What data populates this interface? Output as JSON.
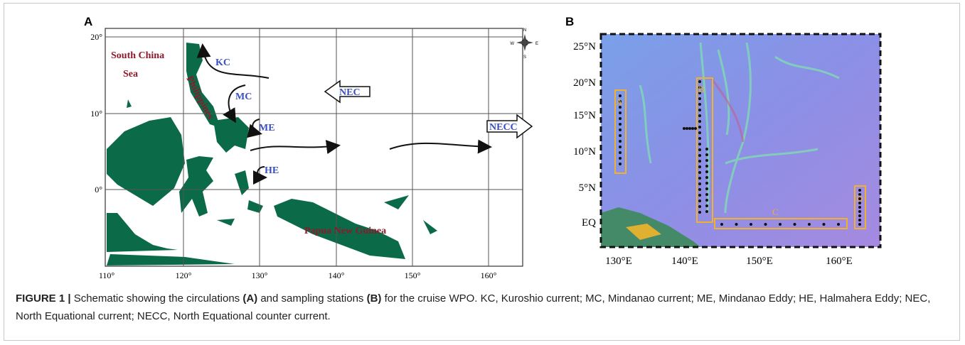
{
  "panel_a": {
    "label": "A",
    "place_labels": [
      "South China",
      "Sea",
      "Philippines",
      "Papua New Guinea"
    ],
    "current_labels": [
      "KC",
      "MC",
      "ME",
      "HE",
      "NEC",
      "NECC"
    ],
    "lon_ticks": [
      "110°",
      "120°",
      "130°",
      "140°",
      "150°",
      "160°"
    ],
    "lat_ticks": [
      "20°",
      "10°",
      "0°"
    ],
    "compass": [
      "N",
      "E",
      "S",
      "W"
    ]
  },
  "panel_b": {
    "label": "B",
    "lat_ticks": [
      "25°N",
      "20°N",
      "15°N",
      "10°N",
      "5°N",
      "EQ"
    ],
    "lon_ticks": [
      "130°E",
      "140°E",
      "150°E",
      "160°E"
    ],
    "box_labels": [
      "A",
      "B",
      "C",
      "D"
    ]
  },
  "caption": {
    "figure_label": "FIGURE 1 |",
    "parts": [
      " Schematic showing the circulations ",
      "(A)",
      " and sampling stations ",
      "(B)",
      " for the cruise WPO. KC, Kuroshio current; MC, Mindanao current; ME, Mindanao Eddy; HE, Halmahera Eddy; NEC, North Equational current; NECC, North Equational counter current."
    ]
  }
}
